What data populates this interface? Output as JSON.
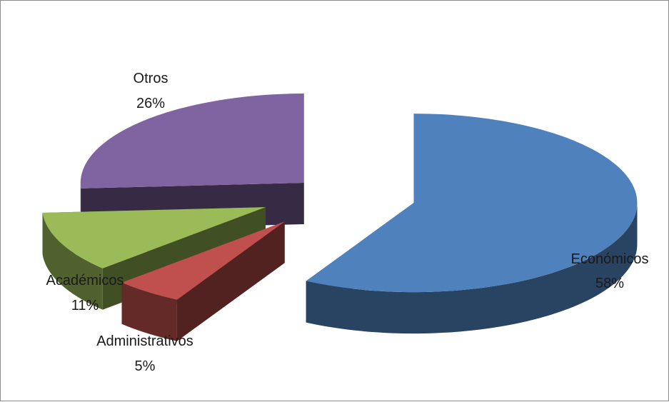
{
  "chart_data": {
    "type": "pie",
    "style": "3d-exploded",
    "title": "",
    "slices": [
      {
        "label": "Económicos",
        "percent_label": "58%",
        "value": 58,
        "color": "#4F81BD"
      },
      {
        "label": "Administrativos",
        "percent_label": "5%",
        "value": 5,
        "color": "#C0504D"
      },
      {
        "label": "Académicos",
        "percent_label": "11%",
        "value": 11,
        "color": "#9BBB59"
      },
      {
        "label": "Otros",
        "percent_label": "26%",
        "value": 26,
        "color": "#8064A2"
      }
    ]
  }
}
